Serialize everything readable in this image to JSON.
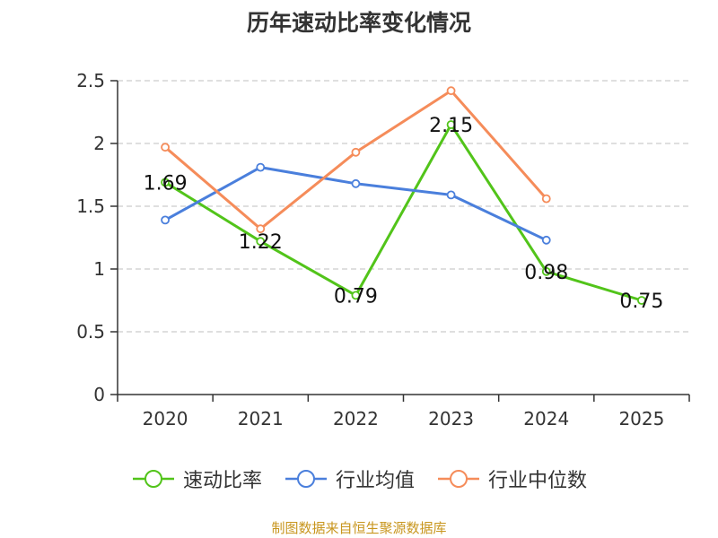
{
  "chart_data": {
    "type": "line",
    "title": "历年速动比率变化情况",
    "categories": [
      "2020",
      "2021",
      "2022",
      "2023",
      "2024",
      "2025"
    ],
    "ylim": [
      0,
      2.5
    ],
    "yticks": [
      "0",
      "0.5",
      "1",
      "1.5",
      "2",
      "2.5"
    ],
    "grid": true,
    "legend_position": "bottom",
    "series": [
      {
        "name": "速动比率",
        "color": "#52c41a",
        "values": [
          1.69,
          1.22,
          0.79,
          2.15,
          0.98,
          0.75
        ],
        "labels": [
          "1.69",
          "1.22",
          "0.79",
          "2.15",
          "0.98",
          "0.75"
        ]
      },
      {
        "name": "行业均值",
        "color": "#4a7fdc",
        "values": [
          1.39,
          1.81,
          1.68,
          1.59,
          1.23,
          null
        ]
      },
      {
        "name": "行业中位数",
        "color": "#f58c5a",
        "values": [
          1.97,
          1.32,
          1.93,
          2.42,
          1.56,
          null
        ]
      }
    ]
  },
  "source": {
    "text": "制图数据来自恒生聚源数据库",
    "color": "#c8961e"
  }
}
